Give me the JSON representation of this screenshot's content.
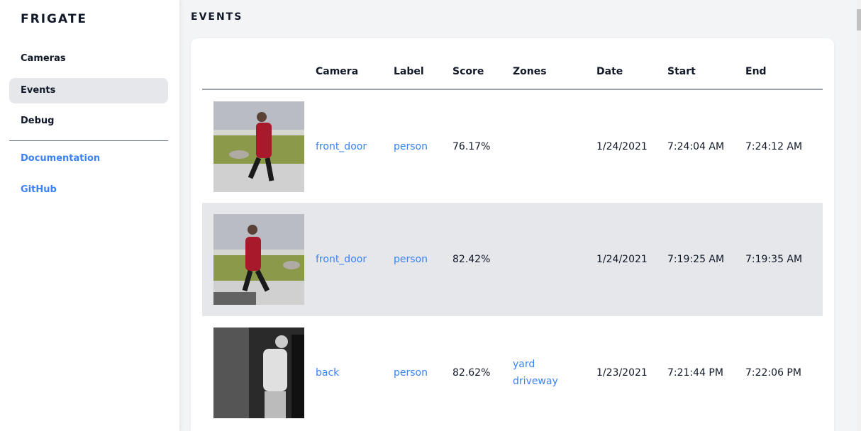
{
  "sidebar": {
    "brand": "FRIGATE",
    "items": [
      {
        "label": "Cameras"
      },
      {
        "label": "Events",
        "active": true
      },
      {
        "label": "Debug"
      }
    ],
    "links": [
      {
        "label": "Documentation"
      },
      {
        "label": "GitHub"
      }
    ]
  },
  "page": {
    "title": "EVENTS"
  },
  "table": {
    "headers": [
      "Camera",
      "Label",
      "Score",
      "Zones",
      "Date",
      "Start",
      "End"
    ],
    "rows": [
      {
        "camera": "front_door",
        "label": "person",
        "score": "76.17%",
        "zones": [
          "",
          ""
        ],
        "date": "1/24/2021",
        "start": "7:24:04 AM",
        "end": "7:24:12 AM"
      },
      {
        "camera": "front_door",
        "label": "person",
        "score": "82.42%",
        "zones": [
          "",
          ""
        ],
        "date": "1/24/2021",
        "start": "7:19:25 AM",
        "end": "7:19:35 AM"
      },
      {
        "camera": "back",
        "label": "person",
        "score": "82.62%",
        "zones": [
          "yard",
          "driveway"
        ],
        "date": "1/23/2021",
        "start": "7:21:44 PM",
        "end": "7:22:06 PM"
      }
    ]
  },
  "colors": {
    "accent": "#3b82f6",
    "active_bg": "#e5e7eb"
  }
}
